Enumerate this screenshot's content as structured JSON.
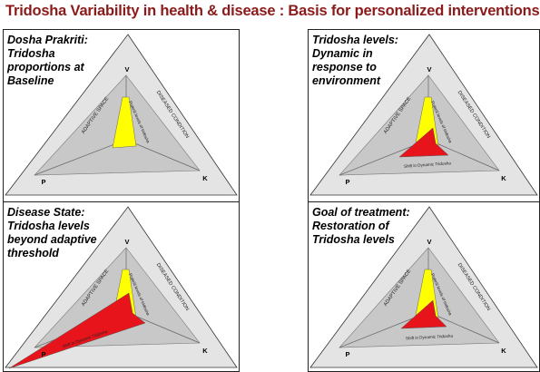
{
  "title": "Tridosha Variability in health & disease : Basis for personalized interventions",
  "labels": {
    "v": "V",
    "k": "K",
    "p": "P",
    "adaptive_space": "ADAPTIVE SPACE",
    "diseased_condition": "DISEASED CONDITION",
    "prakriti_levels": "Prakriti levels of tridosha",
    "shift": "Shift in Dynamic Tridosha"
  },
  "panels": [
    {
      "title": "Dosha Prakriti:\nTridosha\nproportions  at\nBaseline"
    },
    {
      "title": "Tridosha levels:\nDynamic in\nresponse to\nenvironment"
    },
    {
      "title": "Disease State:\nTridosha levels\nbeyond adaptive\nthreshold"
    },
    {
      "title": "Goal of treatment:\nRestoration of\nTridosha levels"
    }
  ],
  "colors": {
    "title": "#8b1a1a",
    "outer_triangle": "#e4e4e4",
    "inner_triangle": "#c8c8c8",
    "prakriti": "#ffff00",
    "shift": "#e8141b"
  }
}
